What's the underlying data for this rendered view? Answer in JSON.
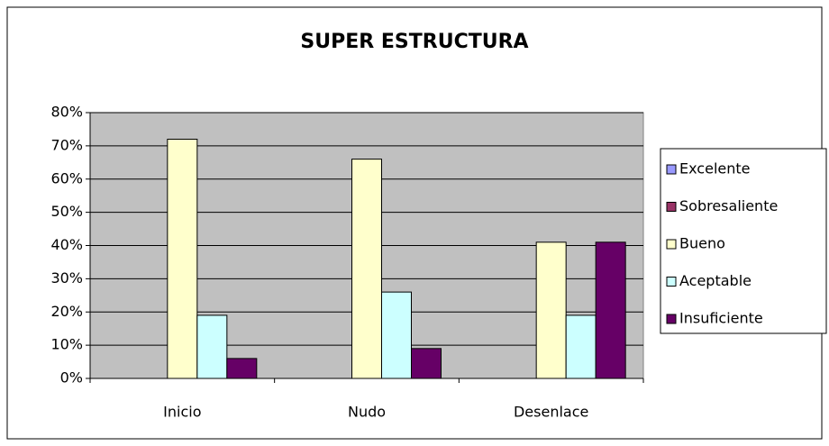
{
  "chart_data": {
    "type": "bar",
    "title": "SUPER ESTRUCTURA",
    "categories": [
      "Inicio",
      "Nudo",
      "Desenlace"
    ],
    "series": [
      {
        "name": "Excelente",
        "color": "#9999ff",
        "values": [
          0,
          0,
          0
        ]
      },
      {
        "name": "Sobresaliente",
        "color": "#993366",
        "values": [
          0,
          0,
          0
        ]
      },
      {
        "name": "Bueno",
        "color": "#ffffcc",
        "values": [
          72,
          66,
          41
        ]
      },
      {
        "name": "Aceptable",
        "color": "#ccffff",
        "values": [
          19,
          26,
          19
        ]
      },
      {
        "name": "Insuficiente",
        "color": "#660066",
        "values": [
          6,
          9,
          41
        ]
      }
    ],
    "ylim": [
      0,
      80
    ],
    "yticks": [
      {
        "value": 0,
        "label": "0%"
      },
      {
        "value": 10,
        "label": "10%"
      },
      {
        "value": 20,
        "label": "20%"
      },
      {
        "value": 30,
        "label": "30%"
      },
      {
        "value": 40,
        "label": "40%"
      },
      {
        "value": 50,
        "label": "50%"
      },
      {
        "value": 60,
        "label": "60%"
      },
      {
        "value": 70,
        "label": "70%"
      },
      {
        "value": 80,
        "label": "80%"
      }
    ],
    "grid": true,
    "legend": "right"
  }
}
